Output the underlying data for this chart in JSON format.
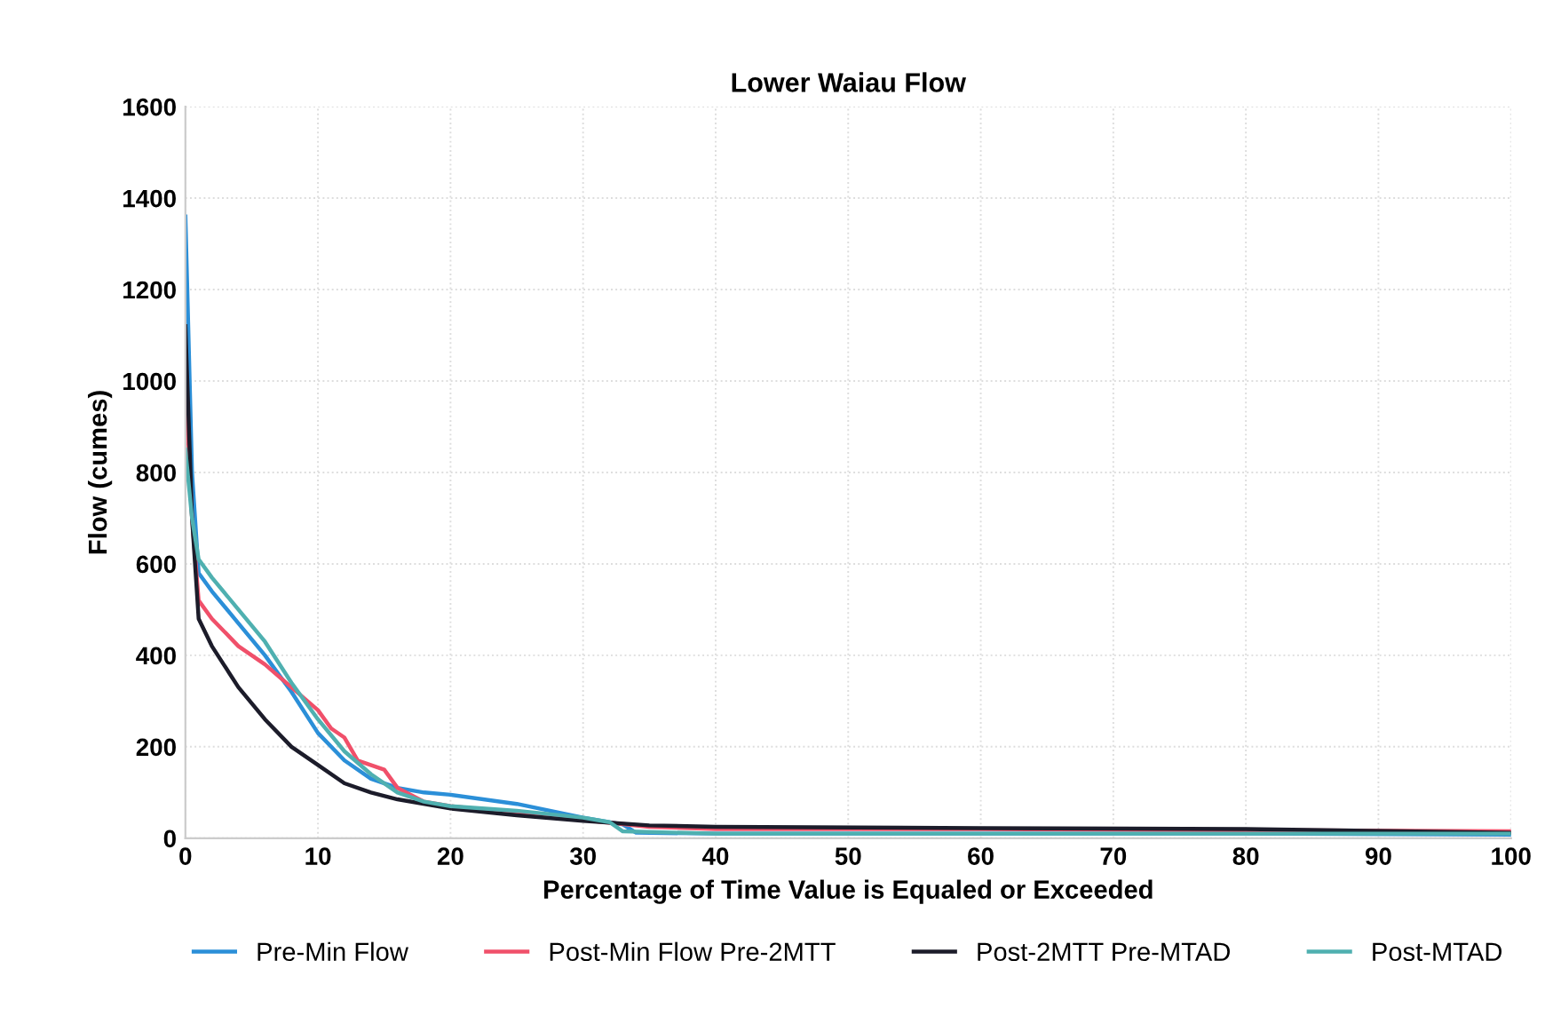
{
  "chart_data": {
    "type": "line",
    "title": "Lower Waiau Flow",
    "xlabel": "Percentage of Time Value is Equaled or Exceeded",
    "ylabel": "Flow (cumes)",
    "xlim": [
      0,
      100
    ],
    "xticks": [
      0,
      10,
      20,
      30,
      40,
      50,
      60,
      70,
      80,
      90,
      100
    ],
    "ylim": [
      0,
      1600
    ],
    "yticks": [
      0,
      200,
      400,
      600,
      800,
      1000,
      1200,
      1400,
      1600
    ],
    "grid": true,
    "legend": "bottom",
    "marker": "none",
    "line_style": "solid",
    "series": [
      {
        "name": "Pre-Min Flow",
        "color": "#2b8fd8",
        "x": [
          0,
          0.5,
          1,
          2,
          4,
          6,
          8,
          10,
          12,
          14,
          16,
          18,
          20,
          25,
          30,
          33,
          34,
          40,
          60,
          80,
          100
        ],
        "values": [
          1360,
          800,
          580,
          540,
          470,
          400,
          320,
          230,
          170,
          130,
          110,
          100,
          95,
          75,
          45,
          30,
          12,
          10,
          10,
          10,
          8
        ]
      },
      {
        "name": "Post-Min Flow Pre-2MTT",
        "color": "#f0506a",
        "x": [
          0,
          0.5,
          1,
          2,
          4,
          6,
          8,
          10,
          11,
          12,
          13,
          15,
          16,
          18,
          20,
          25,
          30,
          35,
          40,
          60,
          100
        ],
        "values": [
          1000,
          700,
          520,
          480,
          420,
          380,
          330,
          280,
          240,
          220,
          170,
          150,
          110,
          80,
          70,
          55,
          40,
          25,
          20,
          20,
          15
        ]
      },
      {
        "name": "Post-2MTT Pre-MTAD",
        "color": "#1c1c2a",
        "x": [
          0,
          0.5,
          1,
          2,
          4,
          6,
          8,
          10,
          12,
          14,
          16,
          20,
          25,
          30,
          35,
          40,
          60,
          80,
          100
        ],
        "values": [
          1120,
          700,
          480,
          420,
          330,
          260,
          200,
          160,
          120,
          100,
          85,
          65,
          50,
          38,
          28,
          25,
          22,
          20,
          12
        ]
      },
      {
        "name": "Post-MTAD",
        "color": "#4fb0b0",
        "x": [
          0,
          0.5,
          1,
          2,
          4,
          6,
          8,
          10,
          12,
          14,
          16,
          18,
          20,
          25,
          30,
          32,
          33,
          40,
          60,
          80,
          100
        ],
        "values": [
          850,
          700,
          610,
          570,
          500,
          430,
          340,
          260,
          190,
          140,
          100,
          80,
          70,
          60,
          45,
          35,
          15,
          10,
          10,
          10,
          10
        ]
      }
    ]
  }
}
